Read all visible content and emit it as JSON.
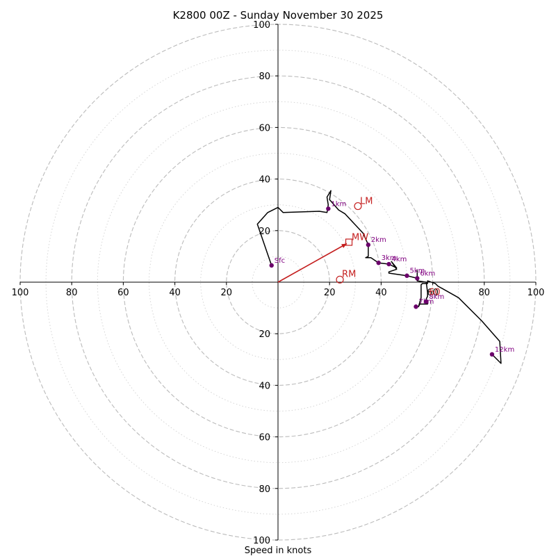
{
  "chart_data": {
    "type": "hodograph",
    "title": "K2800 00Z - Sunday November 30 2025",
    "xlabel": "Speed in knots",
    "units": "knots",
    "xlim": [
      -100,
      100
    ],
    "ylim": [
      -100,
      100
    ],
    "ring_major": [
      20,
      40,
      60,
      80,
      100
    ],
    "ring_minor": [
      10,
      30,
      50,
      70,
      90
    ],
    "x_tick_values": [
      -100,
      -80,
      -60,
      -40,
      -20,
      20,
      40,
      60,
      80,
      100
    ],
    "x_tick_labels": [
      "100",
      "80",
      "60",
      "40",
      "20",
      "20",
      "40",
      "60",
      "80",
      "100"
    ],
    "y_tick_values": [
      100,
      80,
      60,
      40,
      20,
      -20,
      -40,
      -60,
      -80,
      -100
    ],
    "y_tick_labels": [
      "100",
      "80",
      "60",
      "40",
      "20",
      "20",
      "40",
      "60",
      "80",
      "100"
    ],
    "trace": [
      [
        -2.5,
        6.5
      ],
      [
        -8,
        22.5
      ],
      [
        -4,
        27
      ],
      [
        0,
        29
      ],
      [
        2,
        27
      ],
      [
        16,
        27.5
      ],
      [
        19,
        27
      ],
      [
        19.5,
        30
      ],
      [
        19,
        33
      ],
      [
        20.5,
        35.5
      ],
      [
        20,
        32
      ],
      [
        23.5,
        28
      ],
      [
        26,
        26.5
      ],
      [
        33,
        19
      ],
      [
        35,
        14.5
      ],
      [
        35,
        10
      ],
      [
        34,
        9.5
      ],
      [
        36,
        9.5
      ],
      [
        39,
        7.5
      ],
      [
        43,
        7
      ],
      [
        46,
        5.5
      ],
      [
        44,
        8
      ],
      [
        46,
        5
      ],
      [
        43,
        4
      ],
      [
        43,
        3.5
      ],
      [
        50,
        2.5
      ],
      [
        54,
        1.5
      ],
      [
        54,
        4.5
      ],
      [
        54,
        0.5
      ],
      [
        57.5,
        0
      ],
      [
        58,
        -4
      ],
      [
        58,
        -5.5
      ],
      [
        57.5,
        -6.5
      ],
      [
        58,
        -8.5
      ],
      [
        55,
        -8.5
      ],
      [
        54.5,
        -9.5
      ],
      [
        55.5,
        -6
      ],
      [
        55.5,
        -1
      ],
      [
        56,
        -0.5
      ],
      [
        58,
        -0.5
      ],
      [
        58,
        0.5
      ],
      [
        61,
        -0.5
      ],
      [
        62,
        -1.5
      ],
      [
        70,
        -6
      ],
      [
        79,
        -15
      ],
      [
        86,
        -23
      ],
      [
        86.5,
        -31.5
      ],
      [
        83,
        -28
      ]
    ],
    "height_markers": [
      {
        "label": "Sfc",
        "u": -2.5,
        "v": 6.5
      },
      {
        "label": "1km",
        "u": 19.5,
        "v": 28.5
      },
      {
        "label": "2km",
        "u": 35,
        "v": 14.5
      },
      {
        "label": "3km",
        "u": 39,
        "v": 7.5
      },
      {
        "label": "4km",
        "u": 43,
        "v": 7
      },
      {
        "label": "5km",
        "u": 50,
        "v": 2.5
      },
      {
        "label": "6km",
        "u": 54,
        "v": 1.5
      },
      {
        "label": "7km",
        "u": 53.5,
        "v": -9.5
      },
      {
        "label": "8km",
        "u": 57.5,
        "v": -7.5
      },
      {
        "label": "12km",
        "u": 83,
        "v": -28
      }
    ],
    "storm_motion": {
      "mean_wind": {
        "label": "MW",
        "u": 27.5,
        "v": 15.5
      },
      "left_mover": {
        "label": "LM",
        "u": 31,
        "v": 29.5
      },
      "right_mover": {
        "label": "RM",
        "u": 24,
        "v": 1
      },
      "extra_label": {
        "label": "60",
        "u": 58.5,
        "v": -5
      }
    }
  },
  "colors": {
    "trace": "#000000",
    "markers": "#6b006b",
    "marker_labels": "#800080",
    "storm_motion": "#c41e1e",
    "rings": "#bbbbbb",
    "axes": "#000000"
  }
}
